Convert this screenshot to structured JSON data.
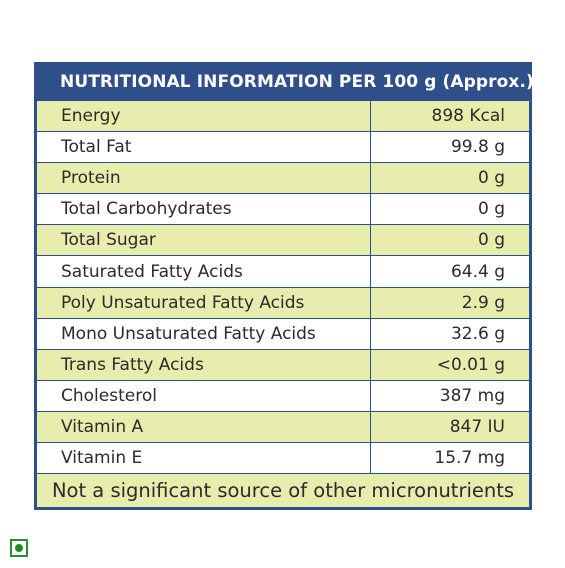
{
  "title": "NUTRITIONAL INFORMATION PER 100 g (Approx.)",
  "rows": [
    {
      "name": "Energy",
      "value": "898 Kcal"
    },
    {
      "name": "Total Fat",
      "value": "99.8 g"
    },
    {
      "name": "Protein",
      "value": "0 g"
    },
    {
      "name": "Total Carbohydrates",
      "value": "0 g"
    },
    {
      "name": "Total Sugar",
      "value": "0 g"
    },
    {
      "name": "Saturated Fatty Acids",
      "value": "64.4 g"
    },
    {
      "name": "Poly Unsaturated Fatty Acids",
      "value": "2.9 g"
    },
    {
      "name": "Mono Unsaturated Fatty Acids",
      "value": "32.6 g"
    },
    {
      "name": "Trans Fatty Acids",
      "value": "<0.01 g"
    },
    {
      "name": "Cholesterol",
      "value": "387 mg"
    },
    {
      "name": "Vitamin A",
      "value": "847 IU"
    },
    {
      "name": "Vitamin E",
      "value": "15.7 mg"
    }
  ],
  "footer": "Not a significant source of other micronutrients",
  "colors": {
    "header_bg": "#2e4f8a",
    "row_tint": "#e7edad",
    "veg_mark": "#1f8b1f"
  },
  "icons": {
    "veg": "vegetarian-mark-icon"
  }
}
